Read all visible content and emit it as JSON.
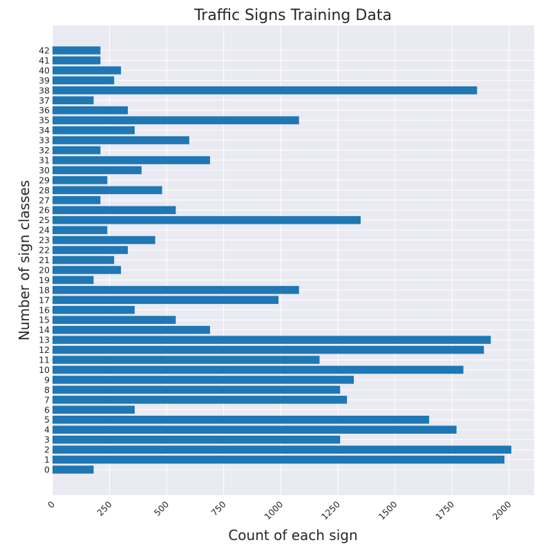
{
  "chart_data": {
    "type": "bar",
    "orientation": "horizontal",
    "title": "Traffic Signs Training Data",
    "xlabel": "Count of each sign",
    "ylabel": "Number of sign classes",
    "xlim": [
      0,
      2110
    ],
    "xticks": [
      0,
      250,
      500,
      750,
      1000,
      1250,
      1500,
      1750,
      2000
    ],
    "grid": true,
    "colors": {
      "bar": "#1f77b4",
      "plot_background": "#eaeaf2",
      "grid": "#ffffff"
    },
    "categories": [
      "0",
      "1",
      "2",
      "3",
      "4",
      "5",
      "6",
      "7",
      "8",
      "9",
      "10",
      "11",
      "12",
      "13",
      "14",
      "15",
      "16",
      "17",
      "18",
      "19",
      "20",
      "21",
      "22",
      "23",
      "24",
      "25",
      "26",
      "27",
      "28",
      "29",
      "30",
      "31",
      "32",
      "33",
      "34",
      "35",
      "36",
      "37",
      "38",
      "39",
      "40",
      "41",
      "42"
    ],
    "values": [
      180,
      1980,
      2010,
      1260,
      1770,
      1650,
      360,
      1290,
      1260,
      1320,
      1800,
      1170,
      1890,
      1920,
      690,
      540,
      360,
      990,
      1080,
      180,
      300,
      270,
      330,
      450,
      240,
      1350,
      540,
      210,
      480,
      240,
      390,
      690,
      210,
      599,
      360,
      1080,
      330,
      180,
      1860,
      270,
      300,
      210,
      210
    ]
  }
}
